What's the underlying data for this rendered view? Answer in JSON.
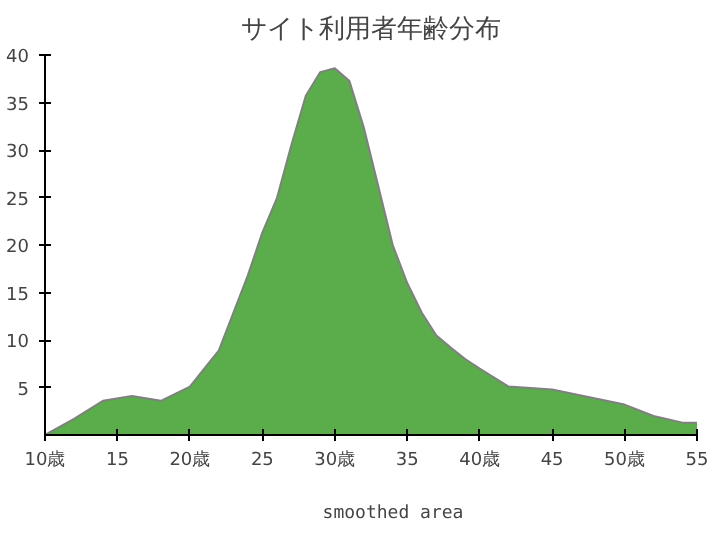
{
  "chart_data": {
    "type": "area",
    "title": "サイト利用者年齢分布",
    "x": [
      10,
      12,
      14,
      16,
      18,
      20,
      22,
      24,
      25,
      26,
      27,
      28,
      29,
      30,
      31,
      32,
      33,
      34,
      35,
      36,
      37,
      38,
      39,
      40,
      42,
      45,
      50,
      52,
      54,
      55
    ],
    "series": [
      {
        "name": "smoothed area",
        "color": "#5aad4a",
        "values": [
          0,
          1.7,
          3.6,
          4.1,
          3.6,
          5.1,
          8.9,
          16.8,
          21.3,
          24.9,
          30.5,
          35.7,
          38.2,
          38.6,
          37.3,
          32.4,
          26.2,
          20,
          16,
          12.9,
          10.5,
          9.2,
          8,
          7,
          5.1,
          4.8,
          3.2,
          2,
          1.3,
          1.3
        ]
      }
    ],
    "xlim": [
      10,
      55
    ],
    "ylim": [
      0,
      40
    ],
    "xticks": [
      {
        "value": 10,
        "label": "10歳"
      },
      15,
      {
        "value": 20,
        "label": "20歳"
      },
      25,
      {
        "value": 30,
        "label": "30歳"
      },
      35,
      {
        "value": 40,
        "label": "40歳"
      },
      45,
      {
        "value": 50,
        "label": "50歳"
      },
      55
    ],
    "yticks": [
      5,
      10,
      15,
      20,
      25,
      30,
      35,
      40
    ],
    "grid": false,
    "legend": "bottom",
    "marker": "none",
    "line_style": "solid"
  }
}
